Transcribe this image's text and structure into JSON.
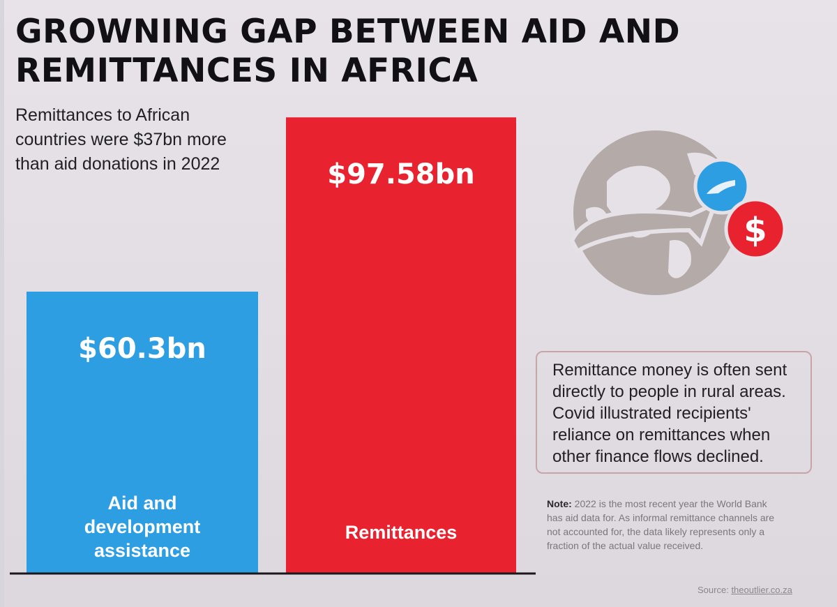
{
  "header": {
    "title": "GROWNING GAP BETWEEN AID AND REMITTANCES IN AFRICA",
    "subtitle": "Remittances to African countries were $37bn more than aid donations in 2022"
  },
  "chart_data": {
    "type": "bar",
    "categories": [
      "Aid and development assistance",
      "Remittances"
    ],
    "values": [
      60.3,
      97.58
    ],
    "value_labels": [
      "$60.3bn",
      "$97.58bn"
    ],
    "unit": "$bn",
    "colors": [
      "#2e9ee3",
      "#e8222e"
    ],
    "title": "",
    "xlabel": "",
    "ylabel": "",
    "grid": false,
    "legend": "none"
  },
  "callout": {
    "text": "Remittance money is often sent directly to people in rural areas. Covid illustrated recipients' reliance on remittances when other finance flows declined."
  },
  "note": {
    "label": "Note:",
    "text": "2022 is the most recent year the World Bank has aid data for. As informal remittance channels are not accounted for, the data likely represents only a fraction of the actual value received."
  },
  "source": {
    "label": "Source:",
    "text": "theoutlier.co.za"
  },
  "icons": {
    "illustration": "globe-with-arrow-icon",
    "hand": "hand-icon",
    "dollar": "dollar-icon"
  },
  "colors": {
    "aid_blue": "#2e9ee3",
    "remit_red": "#e8222e",
    "globe_gray": "#b4aaa8"
  }
}
